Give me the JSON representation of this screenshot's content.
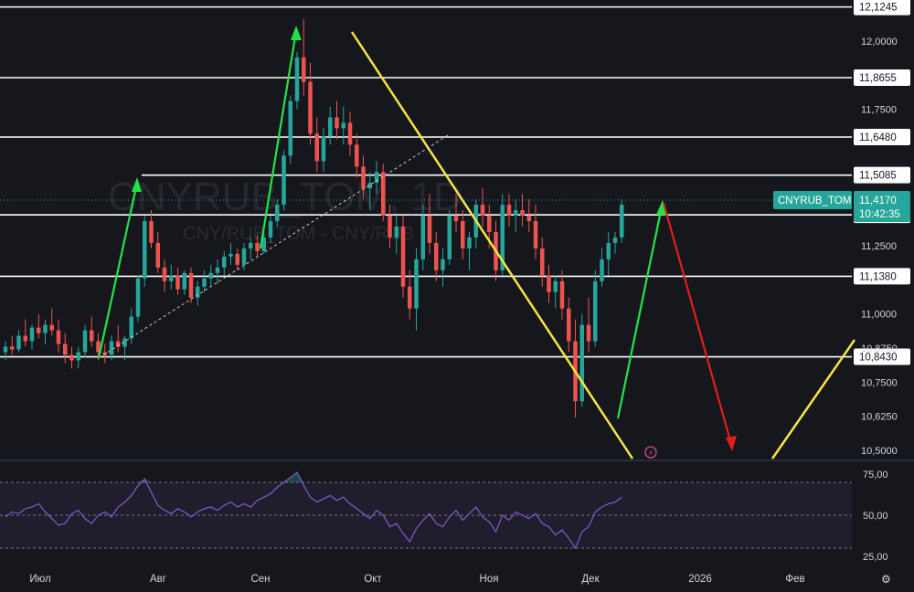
{
  "watermark": {
    "symbol": "CNYRUB_TOM, 1D",
    "description": "CNY/RUB_TOM - CNY/RUB"
  },
  "price_label": {
    "ticker": "CNYRUB_TOM",
    "price": "11,4170",
    "countdown": "10:42:35"
  },
  "colors": {
    "background": "#16171c",
    "up_candle": "#26a69a",
    "down_candle": "#ef5350",
    "level_line": "#ffffff",
    "yellow_line": "#f5e642",
    "green_arrow": "#22e34a",
    "red_arrow": "#e01e1e",
    "rsi_line": "#7e57c2",
    "price_tag": "#26a69a"
  },
  "chart_data": {
    "type": "candlestick",
    "price_axis": {
      "ticks": [
        "12,0000",
        "11,7500",
        "11,2500",
        "11,0000",
        "10,8750",
        "10,7500",
        "10,6250",
        "10,5000"
      ],
      "ylim": [
        10.47,
        12.15
      ]
    },
    "levels": [
      {
        "value": 12.1245,
        "label": "12,1245"
      },
      {
        "value": 11.8655,
        "label": "11,8655"
      },
      {
        "value": 11.648,
        "label": "11,6480"
      },
      {
        "value": 11.5085,
        "label": "11,5085"
      },
      {
        "value": 11.363,
        "label": "11,3630"
      },
      {
        "value": 11.138,
        "label": "11,1380"
      },
      {
        "value": 10.843,
        "label": "10,8430"
      }
    ],
    "last_price": 11.417,
    "time_axis": [
      "Июл",
      "Авг",
      "Сен",
      "Окт",
      "Ноя",
      "Дек",
      "2026",
      "Фев"
    ],
    "ohlc": [
      [
        10.86,
        10.9,
        10.83,
        10.88
      ],
      [
        10.88,
        10.92,
        10.85,
        10.87
      ],
      [
        10.87,
        10.94,
        10.86,
        10.92
      ],
      [
        10.92,
        10.98,
        10.88,
        10.9
      ],
      [
        10.9,
        10.96,
        10.87,
        10.95
      ],
      [
        10.95,
        11.0,
        10.91,
        10.93
      ],
      [
        10.93,
        10.98,
        10.89,
        10.96
      ],
      [
        10.96,
        11.02,
        10.92,
        10.94
      ],
      [
        10.94,
        10.98,
        10.86,
        10.89
      ],
      [
        10.89,
        10.93,
        10.82,
        10.85
      ],
      [
        10.85,
        10.88,
        10.8,
        10.83
      ],
      [
        10.83,
        10.88,
        10.8,
        10.86
      ],
      [
        10.86,
        10.96,
        10.84,
        10.94
      ],
      [
        10.94,
        10.99,
        10.88,
        10.9
      ],
      [
        10.9,
        10.93,
        10.83,
        10.86
      ],
      [
        10.86,
        10.89,
        10.82,
        10.85
      ],
      [
        10.85,
        10.92,
        10.83,
        10.9
      ],
      [
        10.9,
        10.96,
        10.86,
        10.88
      ],
      [
        10.88,
        10.92,
        10.83,
        10.91
      ],
      [
        10.91,
        11.02,
        10.89,
        10.99
      ],
      [
        10.99,
        11.14,
        10.97,
        11.13
      ],
      [
        11.13,
        11.36,
        11.1,
        11.34
      ],
      [
        11.34,
        11.38,
        11.24,
        11.26
      ],
      [
        11.26,
        11.3,
        11.15,
        11.17
      ],
      [
        11.17,
        11.2,
        11.08,
        11.12
      ],
      [
        11.12,
        11.18,
        11.09,
        11.14
      ],
      [
        11.14,
        11.17,
        11.07,
        11.09
      ],
      [
        11.09,
        11.16,
        11.07,
        11.15
      ],
      [
        11.15,
        11.17,
        11.04,
        11.06
      ],
      [
        11.06,
        11.12,
        11.03,
        11.1
      ],
      [
        11.1,
        11.16,
        11.08,
        11.13
      ],
      [
        11.13,
        11.18,
        11.1,
        11.15
      ],
      [
        11.15,
        11.2,
        11.11,
        11.17
      ],
      [
        11.17,
        11.23,
        11.14,
        11.21
      ],
      [
        11.21,
        11.26,
        11.18,
        11.22
      ],
      [
        11.22,
        11.24,
        11.16,
        11.18
      ],
      [
        11.18,
        11.26,
        11.16,
        11.24
      ],
      [
        11.24,
        11.28,
        11.2,
        11.26
      ],
      [
        11.26,
        11.29,
        11.21,
        11.23
      ],
      [
        11.23,
        11.3,
        11.22,
        11.28
      ],
      [
        11.28,
        11.36,
        11.26,
        11.34
      ],
      [
        11.34,
        11.42,
        11.32,
        11.4
      ],
      [
        11.4,
        11.6,
        11.38,
        11.58
      ],
      [
        11.58,
        11.8,
        11.55,
        11.78
      ],
      [
        11.78,
        11.96,
        11.75,
        11.94
      ],
      [
        11.94,
        12.08,
        11.8,
        11.85
      ],
      [
        11.85,
        11.92,
        11.62,
        11.66
      ],
      [
        11.66,
        11.72,
        11.52,
        11.56
      ],
      [
        11.56,
        11.68,
        11.52,
        11.65
      ],
      [
        11.65,
        11.76,
        11.62,
        11.72
      ],
      [
        11.72,
        11.78,
        11.64,
        11.68
      ],
      [
        11.68,
        11.76,
        11.62,
        11.7
      ],
      [
        11.7,
        11.74,
        11.58,
        11.62
      ],
      [
        11.62,
        11.66,
        11.5,
        11.54
      ],
      [
        11.54,
        11.58,
        11.42,
        11.46
      ],
      [
        11.46,
        11.52,
        11.38,
        11.48
      ],
      [
        11.48,
        11.56,
        11.44,
        11.52
      ],
      [
        11.52,
        11.55,
        11.34,
        11.36
      ],
      [
        11.36,
        11.4,
        11.24,
        11.28
      ],
      [
        11.28,
        11.36,
        11.22,
        11.32
      ],
      [
        11.32,
        11.36,
        11.06,
        11.1
      ],
      [
        11.1,
        11.16,
        10.98,
        11.02
      ],
      [
        11.02,
        11.24,
        10.94,
        11.2
      ],
      [
        11.2,
        11.4,
        11.16,
        11.36
      ],
      [
        11.36,
        11.44,
        11.22,
        11.26
      ],
      [
        11.26,
        11.3,
        11.12,
        11.16
      ],
      [
        11.16,
        11.24,
        11.1,
        11.2
      ],
      [
        11.2,
        11.38,
        11.18,
        11.36
      ],
      [
        11.36,
        11.44,
        11.3,
        11.34
      ],
      [
        11.34,
        11.38,
        11.2,
        11.24
      ],
      [
        11.24,
        11.3,
        11.16,
        11.28
      ],
      [
        11.28,
        11.42,
        11.24,
        11.4
      ],
      [
        11.4,
        11.46,
        11.32,
        11.36
      ],
      [
        11.36,
        11.4,
        11.24,
        11.3
      ],
      [
        11.3,
        11.34,
        11.12,
        11.16
      ],
      [
        11.16,
        11.44,
        11.14,
        11.4
      ],
      [
        11.4,
        11.44,
        11.32,
        11.36
      ],
      [
        11.36,
        11.42,
        11.3,
        11.38
      ],
      [
        11.38,
        11.44,
        11.32,
        11.36
      ],
      [
        11.36,
        11.42,
        11.3,
        11.34
      ],
      [
        11.34,
        11.4,
        11.2,
        11.24
      ],
      [
        11.24,
        11.28,
        11.1,
        11.14
      ],
      [
        11.14,
        11.18,
        11.04,
        11.08
      ],
      [
        11.08,
        11.14,
        11.02,
        11.12
      ],
      [
        11.12,
        11.16,
        10.98,
        11.02
      ],
      [
        11.02,
        11.06,
        10.86,
        10.9
      ],
      [
        10.9,
        10.98,
        10.62,
        10.68
      ],
      [
        10.68,
        11.0,
        10.66,
        10.96
      ],
      [
        10.96,
        11.06,
        10.86,
        10.9
      ],
      [
        10.9,
        11.16,
        10.88,
        11.12
      ],
      [
        11.12,
        11.24,
        11.1,
        11.2
      ],
      [
        11.2,
        11.3,
        11.14,
        11.26
      ],
      [
        11.26,
        11.3,
        11.22,
        11.28
      ],
      [
        11.28,
        11.42,
        11.26,
        11.4
      ]
    ],
    "rsi": {
      "ticks": [
        "75,00",
        "50,00",
        "25,00"
      ],
      "ylim": [
        20,
        80
      ],
      "overbought": 70,
      "oversold": 30,
      "values": [
        49,
        52,
        51,
        54,
        55,
        57,
        52,
        48,
        44,
        45,
        51,
        53,
        48,
        45,
        50,
        52,
        49,
        55,
        58,
        62,
        68,
        72,
        64,
        56,
        53,
        51,
        54,
        52,
        49,
        52,
        54,
        55,
        53,
        56,
        58,
        55,
        57,
        55,
        59,
        61,
        63,
        67,
        70,
        73,
        76,
        68,
        61,
        58,
        60,
        62,
        59,
        61,
        57,
        54,
        51,
        48,
        53,
        50,
        43,
        45,
        39,
        34,
        42,
        47,
        51,
        45,
        43,
        49,
        53,
        47,
        51,
        55,
        49,
        46,
        40,
        50,
        47,
        52,
        50,
        48,
        51,
        45,
        43,
        38,
        41,
        36,
        30,
        40,
        43,
        52,
        55,
        57,
        58,
        61
      ]
    }
  }
}
